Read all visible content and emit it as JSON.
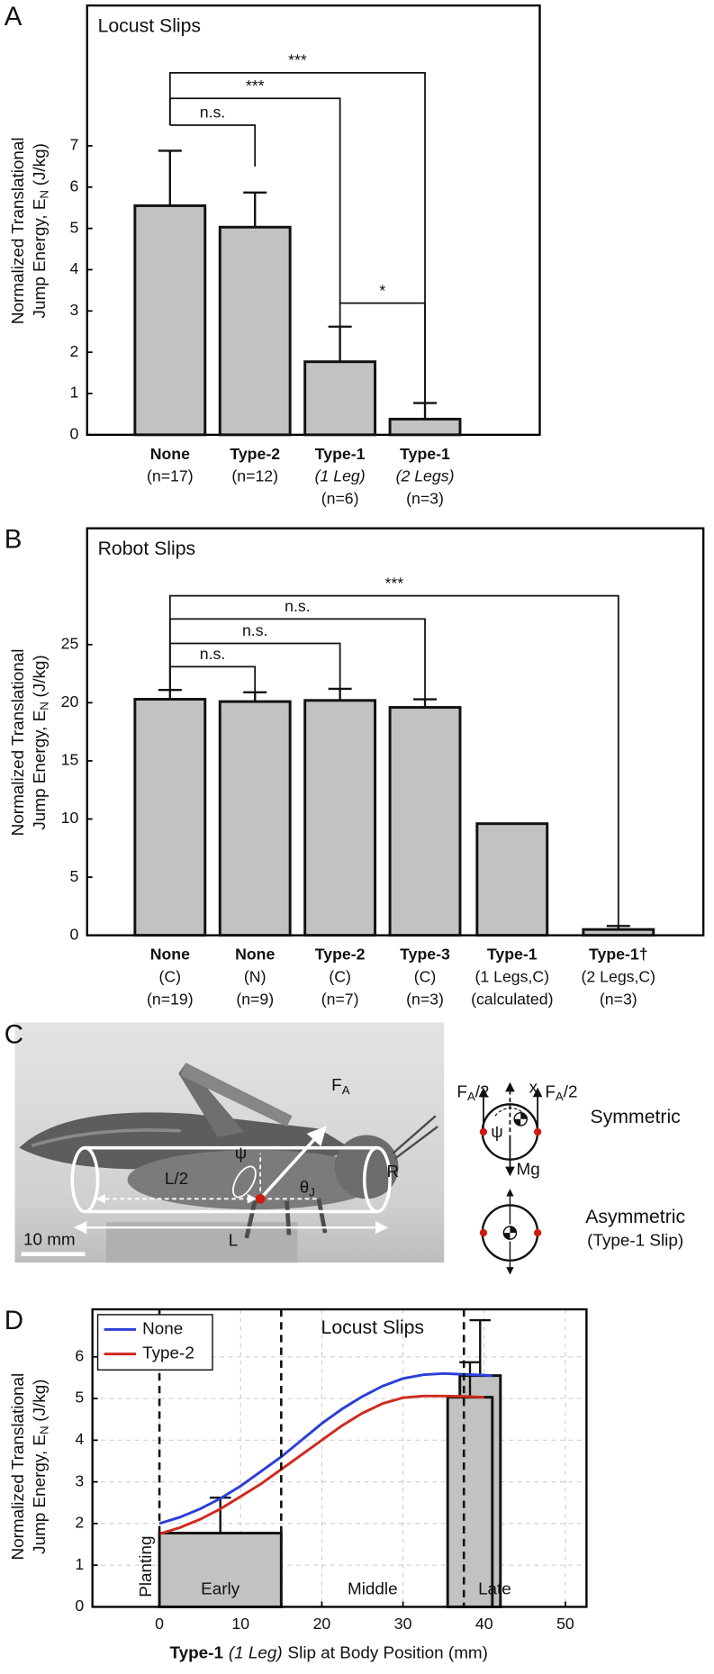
{
  "chart_data": [
    {
      "panel": "A",
      "type": "bar",
      "title": "Locust Slips",
      "ylabel": {
        "lines": [
          "Normalized Translational",
          "Jump Energy, E"
        ],
        "subscript": "N",
        "unit": "(J/kg)"
      },
      "categories": [
        [
          "None",
          "(n=17)"
        ],
        [
          "Type-2",
          "(n=12)"
        ],
        [
          "Type-1",
          "(1 Leg)",
          "(n=6)"
        ],
        [
          "Type-1",
          "(2 Legs)",
          "(n=3)"
        ]
      ],
      "italic_middle": true,
      "values": [
        5.55,
        5.03,
        1.77,
        0.38
      ],
      "errors": [
        1.33,
        0.84,
        0.85,
        0.39
      ],
      "color": "#c1c3c0",
      "ylim": [
        0,
        10.4
      ],
      "yticks": [
        0,
        1,
        2,
        3,
        4,
        5,
        6,
        7
      ],
      "brackets": [
        {
          "pair": [
            0,
            1
          ],
          "label": "n.s.",
          "y": 7.5,
          "legs": [
            7.5,
            6.5
          ]
        },
        {
          "pair": [
            0,
            2
          ],
          "label": "***",
          "y": 8.15,
          "legs": [
            7.5,
            3.19
          ]
        },
        {
          "pair": [
            0,
            3
          ],
          "label": "***",
          "y": 8.77,
          "legs": [
            7.5,
            0.77
          ]
        },
        {
          "pair": [
            2,
            3
          ],
          "label": "*",
          "y": 3.19,
          "legs": [
            2.62,
            0.77
          ]
        }
      ]
    },
    {
      "panel": "B",
      "type": "bar",
      "title": "Robot Slips",
      "ylabel": {
        "lines": [
          "Normalized Translational",
          "Jump Energy, E"
        ],
        "subscript": "N",
        "unit": "(J/kg)"
      },
      "categories": [
        [
          "None",
          "(C)",
          "(n=19)"
        ],
        [
          "None",
          "(N)",
          "(n=9)"
        ],
        [
          "Type-2",
          "(C)",
          "(n=7)"
        ],
        [
          "Type-3",
          "(C)",
          "(n=3)"
        ],
        [
          "Type-1",
          "(1 Legs,C)",
          "(calculated)"
        ],
        [
          "Type-1†",
          "(2 Legs,C)",
          "(n=3)"
        ]
      ],
      "italic_middle": false,
      "values": [
        20.3,
        20.1,
        20.2,
        19.6,
        9.6,
        0.5
      ],
      "errors": [
        0.8,
        0.8,
        1.0,
        0.7,
        null,
        0.3
      ],
      "color": "#c1c3c0",
      "ylim": [
        0,
        35
      ],
      "yticks": [
        0,
        5,
        10,
        15,
        20,
        25
      ],
      "brackets": [
        {
          "pair": [
            0,
            1
          ],
          "label": "n.s.",
          "y": 23.1,
          "legs": [
            21.1,
            20.9
          ]
        },
        {
          "pair": [
            0,
            2
          ],
          "label": "n.s.",
          "y": 25.1,
          "legs": [
            21.1,
            21.2
          ]
        },
        {
          "pair": [
            0,
            3
          ],
          "label": "n.s.",
          "y": 27.2,
          "legs": [
            21.1,
            20.3
          ]
        },
        {
          "pair": [
            0,
            5
          ],
          "label": "***",
          "y": 29.2,
          "legs": [
            21.1,
            0.8
          ]
        }
      ]
    },
    {
      "panel": "D",
      "type": "line",
      "title": "Locust Slips",
      "ylabel": {
        "lines": [
          "Normalized Translational",
          "Jump Energy, E"
        ],
        "subscript": "N",
        "unit": "(J/kg)"
      },
      "xlabel": [
        "Type-1",
        "(1 Leg)",
        "Slip at Body Position (mm)"
      ],
      "x": [
        0,
        2.5,
        5,
        7.5,
        10,
        12.5,
        15,
        17.5,
        20,
        22.5,
        25,
        27.5,
        30,
        32.5,
        35,
        37.5,
        40,
        41
      ],
      "series": [
        {
          "name": "None",
          "color": "#2b3fd6",
          "values": [
            2.0,
            2.15,
            2.35,
            2.6,
            2.9,
            3.25,
            3.6,
            4.0,
            4.4,
            4.75,
            5.05,
            5.3,
            5.48,
            5.57,
            5.6,
            5.58,
            5.56,
            5.55
          ]
        },
        {
          "name": "Type-2",
          "color": "#d02a1e",
          "values": [
            1.75,
            1.9,
            2.1,
            2.35,
            2.65,
            2.95,
            3.3,
            3.65,
            4.0,
            4.35,
            4.65,
            4.88,
            5.02,
            5.06,
            5.06,
            5.05,
            5.03,
            null
          ]
        }
      ],
      "bars": [
        {
          "x": [
            0,
            15
          ],
          "value": 1.77,
          "error": 0.85
        },
        {
          "x": [
            37,
            42
          ],
          "value": 5.55,
          "error": 1.33
        },
        {
          "x": [
            35.5,
            41
          ],
          "value": 5.03,
          "error": 0.84
        }
      ],
      "bar_color": "#c1c3c0",
      "dividers": [
        0,
        15,
        37.5
      ],
      "zone_labels": [
        "Planting",
        "Early",
        "Middle",
        "Late"
      ],
      "xlim": [
        -8.25,
        52.6
      ],
      "xticks": [
        0,
        10,
        20,
        30,
        40,
        50
      ],
      "ylim": [
        0,
        7.14
      ],
      "yticks": [
        0,
        1,
        2,
        3,
        4,
        5,
        6
      ],
      "grid": true,
      "legend": "top-left"
    }
  ],
  "panel_c": {
    "panel": "C",
    "photo_labels": {
      "force": [
        "F",
        "A"
      ],
      "psi": "ψ",
      "theta": [
        "θ",
        "J"
      ],
      "half_length": "L/2",
      "length": "L",
      "radius": "R",
      "scale_bar": "10 mm"
    },
    "diagram_labels": {
      "left_force": [
        "F",
        "A",
        "/2"
      ],
      "axis": "x",
      "right_force": [
        "F",
        "A",
        "/2"
      ],
      "psi": "ψ",
      "weight": "Mg",
      "symmetric": "Symmetric",
      "asymmetric": "Asymmetric",
      "asymmetric_note": "(Type-1 Slip)"
    }
  }
}
